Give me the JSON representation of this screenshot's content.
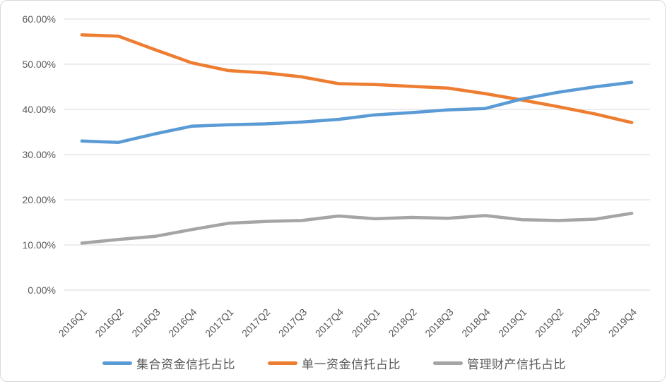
{
  "chart_data": {
    "type": "line",
    "title": "",
    "xlabel": "",
    "ylabel": "",
    "categories": [
      "2016Q1",
      "2016Q2",
      "2016Q3",
      "2016Q4",
      "2017Q1",
      "2017Q2",
      "2017Q3",
      "2017Q4",
      "2018Q1",
      "2018Q2",
      "2018Q3",
      "2018Q4",
      "2019Q1",
      "2019Q2",
      "2019Q3",
      "2019Q4"
    ],
    "series": [
      {
        "name": "集合资金信托占比",
        "color": "#5B9BD5",
        "values": [
          33.0,
          32.7,
          34.6,
          36.3,
          36.6,
          36.8,
          37.2,
          37.8,
          38.8,
          39.3,
          39.9,
          40.2,
          42.3,
          43.8,
          45.0,
          46.0
        ]
      },
      {
        "name": "单一资金信托占比",
        "color": "#ED7D31",
        "values": [
          56.5,
          56.2,
          53.2,
          50.3,
          48.6,
          48.1,
          47.2,
          45.7,
          45.5,
          45.1,
          44.7,
          43.5,
          42.1,
          40.6,
          39.0,
          37.1
        ]
      },
      {
        "name": "管理财产信托占比",
        "color": "#A5A5A5",
        "values": [
          10.4,
          11.2,
          11.9,
          13.4,
          14.8,
          15.2,
          15.4,
          16.4,
          15.8,
          16.1,
          15.9,
          16.5,
          15.6,
          15.4,
          15.7,
          17.0
        ]
      }
    ],
    "y_axis": {
      "min": 0,
      "max": 60,
      "step": 10,
      "tick_labels": [
        "0.00%",
        "10.00%",
        "20.00%",
        "30.00%",
        "40.00%",
        "50.00%",
        "60.00%"
      ]
    },
    "grid": true,
    "legend_position": "bottom"
  },
  "colors": {
    "text": "#595959",
    "gridline": "#D9D9D9",
    "panel_border": "#D9D9D9",
    "background": "#FFFFFF"
  }
}
